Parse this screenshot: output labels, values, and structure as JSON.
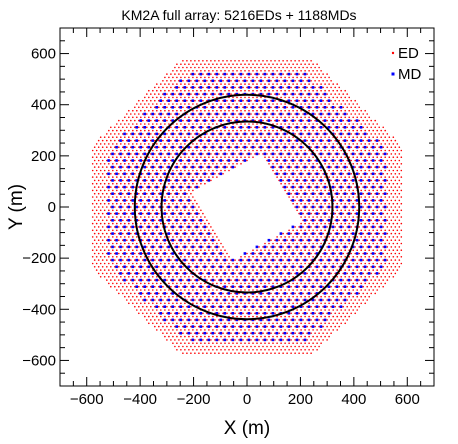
{
  "chart_data": {
    "type": "scatter",
    "title": "KM2A full array: 5216EDs + 1188MDs",
    "xlabel": "X (m)",
    "ylabel": "Y (m)",
    "xlim": [
      -700,
      700
    ],
    "ylim": [
      -700,
      700
    ],
    "xticks": [
      -600,
      -400,
      -200,
      0,
      200,
      400,
      600
    ],
    "yticks": [
      -600,
      -400,
      -200,
      0,
      200,
      400,
      600
    ],
    "xtick_labels": [
      "−600",
      "−400",
      "−200",
      "0",
      "200",
      "400",
      "600"
    ],
    "ytick_labels": [
      "−600",
      "−400",
      "−200",
      "0",
      "200",
      "400",
      "600"
    ],
    "grid": false,
    "legend_position": "top-right",
    "series": [
      {
        "name": "ED",
        "count": 5216,
        "color": "#ff0000",
        "marker": "dot",
        "layout": "triangular grid",
        "spacing": 15,
        "outer_radius": 630,
        "bounding_shape": "octagon",
        "excluded_region": {
          "shape": "square",
          "center": [
            0,
            0
          ],
          "half_side": 150,
          "rotation_deg": 30
        }
      },
      {
        "name": "MD",
        "count": 1188,
        "color": "#0000ff",
        "marker": "square",
        "layout": "triangular grid",
        "spacing": 30,
        "outer_radius": 575,
        "bounding_shape": "octagon",
        "excluded_region": {
          "shape": "square",
          "center": [
            0,
            0
          ],
          "half_side": 150,
          "rotation_deg": 30
        }
      }
    ],
    "circles": [
      {
        "center": [
          0,
          0
        ],
        "radius": 320,
        "color": "#000000"
      },
      {
        "center": [
          0,
          0
        ],
        "radius": 420,
        "color": "#000000"
      }
    ]
  }
}
